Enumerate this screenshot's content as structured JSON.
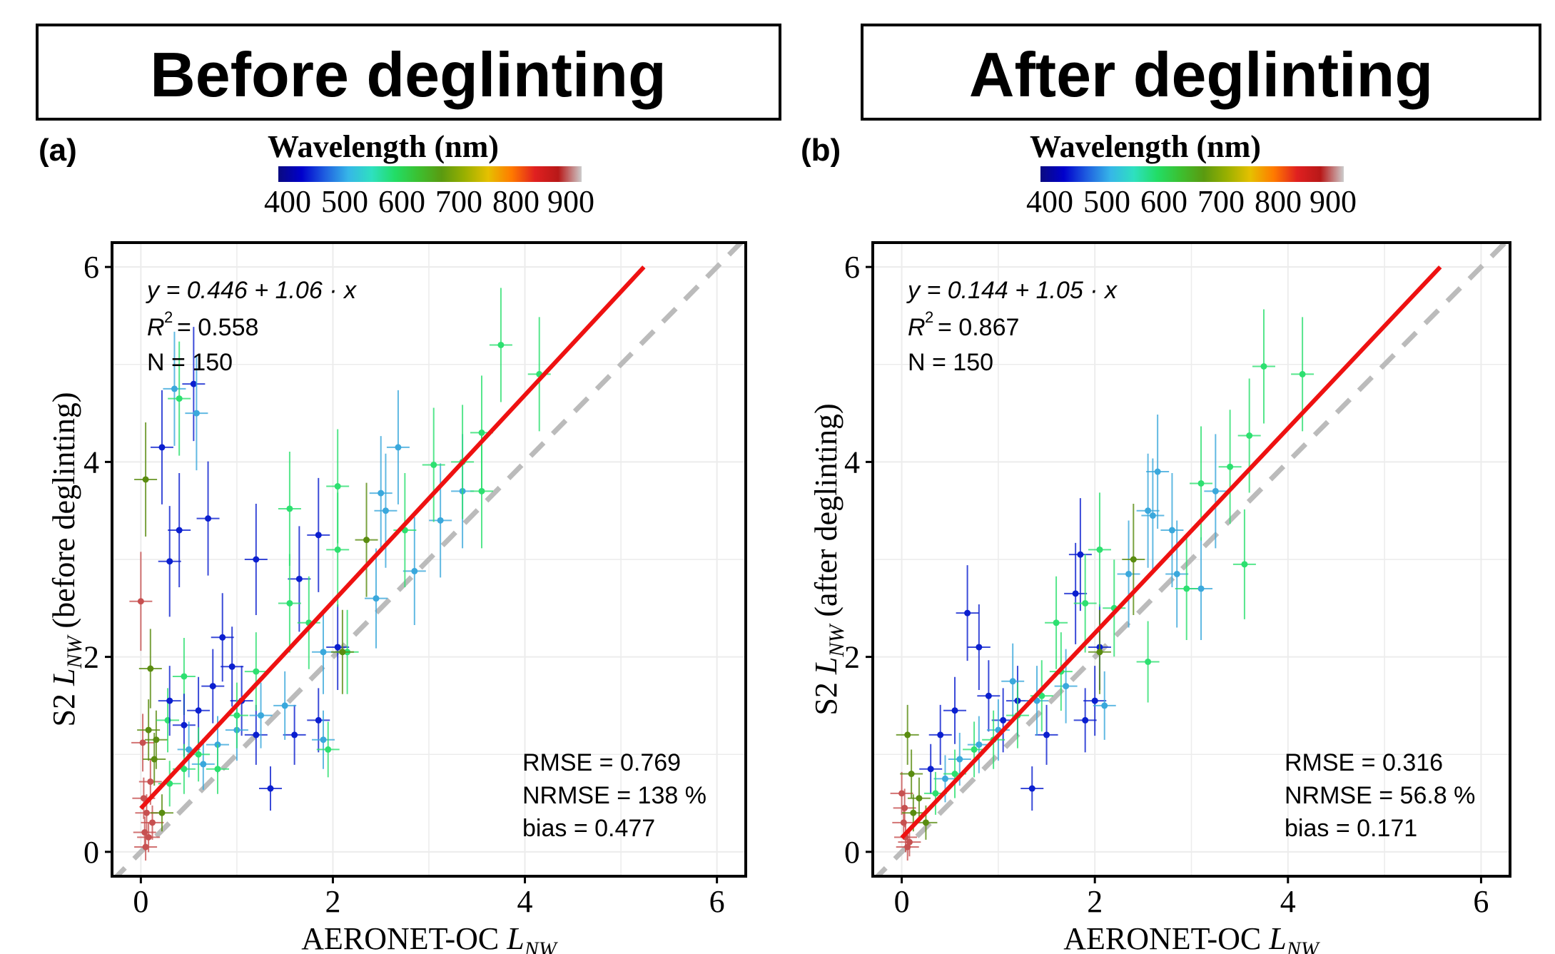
{
  "colors": {
    "fit_line": "#ee1111",
    "identity_line": "#bbbbbb",
    "frame": "#000000",
    "grid": "#ececec",
    "colorbar_stops": [
      "#0a0a80",
      "#0000cc",
      "#1f5fe0",
      "#36b6e8",
      "#2ee0c0",
      "#22dd66",
      "#3cc030",
      "#5a9a10",
      "#9ab000",
      "#e6c000",
      "#ff7a00",
      "#e02020",
      "#b81818",
      "#cccccc"
    ]
  },
  "panels": [
    {
      "title": "Before deglinting",
      "label": "(a)",
      "colorbar_title": "Wavelength (nm)",
      "colorbar_ticks": [
        "400",
        "500",
        "600",
        "700",
        "800",
        "900"
      ],
      "ylabel_prefix": "S2",
      "ylabel_L": "L",
      "ylabel_sub": "NW",
      "ylabel_suffix": "(before deglinting)",
      "xlabel_prefix": "AERONET-OC",
      "xlabel_L": "L",
      "xlabel_sub": "NW",
      "equation": "y = 0.446 + 1.06 · x",
      "r2_value": "= 0.558",
      "n_text": "N = 150",
      "rmse_text": "RMSE = 0.769",
      "nrmse_text": "NRMSE = 138 %",
      "bias_text": "bias = 0.477"
    },
    {
      "title": "After deglinting",
      "label": "(b)",
      "colorbar_title": "Wavelength (nm)",
      "colorbar_ticks": [
        "400",
        "500",
        "600",
        "700",
        "800",
        "900"
      ],
      "ylabel_prefix": "S2",
      "ylabel_L": "L",
      "ylabel_sub": "NW",
      "ylabel_suffix": "(after deglinting)",
      "xlabel_prefix": "AERONET-OC",
      "xlabel_L": "L",
      "xlabel_sub": "NW",
      "equation": "y = 0.144 + 1.05 · x",
      "r2_value": "= 0.867",
      "n_text": "N = 150",
      "rmse_text": "RMSE = 0.316",
      "nrmse_text": "NRMSE = 56.8 %",
      "bias_text": "bias = 0.171"
    }
  ],
  "chart_data": [
    {
      "type": "scatter",
      "title": "Before deglinting",
      "xlabel": "AERONET-OC L_NW",
      "ylabel": "S2 L_NW (before deglinting)",
      "xlim": [
        -0.3,
        6.3
      ],
      "ylim": [
        -0.25,
        6.25
      ],
      "x_ticks": [
        0,
        2,
        4,
        6
      ],
      "y_ticks": [
        0,
        2,
        4,
        6
      ],
      "grid": true,
      "fit": {
        "intercept": 0.446,
        "slope": 1.06
      },
      "identity_line": true,
      "color_encoding": "Wavelength (nm)",
      "points": [
        {
          "x": 0.0,
          "y": 2.57,
          "wl": 865
        },
        {
          "x": 0.02,
          "y": 1.12,
          "wl": 865
        },
        {
          "x": 0.03,
          "y": 0.55,
          "wl": 865
        },
        {
          "x": 0.04,
          "y": 0.2,
          "wl": 865
        },
        {
          "x": 0.05,
          "y": 0.05,
          "wl": 865
        },
        {
          "x": 0.06,
          "y": 0.4,
          "wl": 865
        },
        {
          "x": 0.08,
          "y": 0.15,
          "wl": 865
        },
        {
          "x": 0.1,
          "y": 0.72,
          "wl": 865
        },
        {
          "x": 0.12,
          "y": 0.3,
          "wl": 865
        },
        {
          "x": 0.05,
          "y": 3.82,
          "wl": 665
        },
        {
          "x": 0.08,
          "y": 1.25,
          "wl": 665
        },
        {
          "x": 0.1,
          "y": 1.88,
          "wl": 665
        },
        {
          "x": 0.14,
          "y": 0.95,
          "wl": 665
        },
        {
          "x": 0.16,
          "y": 1.15,
          "wl": 665
        },
        {
          "x": 0.22,
          "y": 0.4,
          "wl": 665
        },
        {
          "x": 0.28,
          "y": 1.35,
          "wl": 560
        },
        {
          "x": 0.35,
          "y": 4.75,
          "wl": 490
        },
        {
          "x": 0.4,
          "y": 4.65,
          "wl": 560
        },
        {
          "x": 0.45,
          "y": 1.8,
          "wl": 560
        },
        {
          "x": 0.22,
          "y": 4.15,
          "wl": 443
        },
        {
          "x": 0.55,
          "y": 4.8,
          "wl": 443
        },
        {
          "x": 0.58,
          "y": 4.5,
          "wl": 490
        },
        {
          "x": 0.3,
          "y": 2.98,
          "wl": 443
        },
        {
          "x": 0.4,
          "y": 3.3,
          "wl": 443
        },
        {
          "x": 0.7,
          "y": 3.42,
          "wl": 443
        },
        {
          "x": 0.3,
          "y": 1.55,
          "wl": 443
        },
        {
          "x": 0.45,
          "y": 1.3,
          "wl": 443
        },
        {
          "x": 0.6,
          "y": 1.45,
          "wl": 443
        },
        {
          "x": 0.75,
          "y": 1.7,
          "wl": 443
        },
        {
          "x": 0.85,
          "y": 2.2,
          "wl": 443
        },
        {
          "x": 0.95,
          "y": 1.9,
          "wl": 443
        },
        {
          "x": 1.05,
          "y": 1.55,
          "wl": 443
        },
        {
          "x": 1.2,
          "y": 1.2,
          "wl": 443
        },
        {
          "x": 1.35,
          "y": 0.65,
          "wl": 443
        },
        {
          "x": 1.6,
          "y": 1.2,
          "wl": 443
        },
        {
          "x": 1.65,
          "y": 2.8,
          "wl": 443
        },
        {
          "x": 1.85,
          "y": 3.25,
          "wl": 443
        },
        {
          "x": 1.85,
          "y": 1.35,
          "wl": 443
        },
        {
          "x": 1.2,
          "y": 3.0,
          "wl": 443
        },
        {
          "x": 2.05,
          "y": 2.1,
          "wl": 443
        },
        {
          "x": 0.5,
          "y": 1.05,
          "wl": 490
        },
        {
          "x": 0.65,
          "y": 0.9,
          "wl": 490
        },
        {
          "x": 0.8,
          "y": 1.1,
          "wl": 490
        },
        {
          "x": 1.0,
          "y": 1.25,
          "wl": 490
        },
        {
          "x": 1.25,
          "y": 1.4,
          "wl": 490
        },
        {
          "x": 1.5,
          "y": 1.5,
          "wl": 490
        },
        {
          "x": 1.9,
          "y": 1.15,
          "wl": 490
        },
        {
          "x": 1.9,
          "y": 2.05,
          "wl": 490
        },
        {
          "x": 2.45,
          "y": 2.6,
          "wl": 490
        },
        {
          "x": 2.5,
          "y": 3.68,
          "wl": 490
        },
        {
          "x": 2.55,
          "y": 3.5,
          "wl": 490
        },
        {
          "x": 2.68,
          "y": 4.15,
          "wl": 490
        },
        {
          "x": 2.85,
          "y": 2.88,
          "wl": 490
        },
        {
          "x": 3.12,
          "y": 3.4,
          "wl": 490
        },
        {
          "x": 3.35,
          "y": 3.7,
          "wl": 490
        },
        {
          "x": 0.3,
          "y": 0.7,
          "wl": 560
        },
        {
          "x": 0.45,
          "y": 0.85,
          "wl": 560
        },
        {
          "x": 0.6,
          "y": 1.0,
          "wl": 560
        },
        {
          "x": 0.8,
          "y": 0.85,
          "wl": 560
        },
        {
          "x": 1.0,
          "y": 1.4,
          "wl": 560
        },
        {
          "x": 1.2,
          "y": 1.85,
          "wl": 560
        },
        {
          "x": 1.55,
          "y": 2.55,
          "wl": 560
        },
        {
          "x": 1.55,
          "y": 3.52,
          "wl": 560
        },
        {
          "x": 1.75,
          "y": 2.35,
          "wl": 560
        },
        {
          "x": 1.95,
          "y": 1.05,
          "wl": 560
        },
        {
          "x": 2.05,
          "y": 3.1,
          "wl": 560
        },
        {
          "x": 2.05,
          "y": 3.75,
          "wl": 560
        },
        {
          "x": 2.15,
          "y": 2.05,
          "wl": 560
        },
        {
          "x": 2.75,
          "y": 3.3,
          "wl": 560
        },
        {
          "x": 3.05,
          "y": 3.97,
          "wl": 560
        },
        {
          "x": 3.35,
          "y": 4.0,
          "wl": 560
        },
        {
          "x": 3.55,
          "y": 3.7,
          "wl": 560
        },
        {
          "x": 3.55,
          "y": 4.3,
          "wl": 560
        },
        {
          "x": 3.75,
          "y": 5.2,
          "wl": 560
        },
        {
          "x": 4.15,
          "y": 4.9,
          "wl": 560
        },
        {
          "x": 2.35,
          "y": 3.2,
          "wl": 665
        },
        {
          "x": 2.1,
          "y": 2.05,
          "wl": 665
        }
      ]
    },
    {
      "type": "scatter",
      "title": "After deglinting",
      "xlabel": "AERONET-OC L_NW",
      "ylabel": "S2 L_NW (after deglinting)",
      "xlim": [
        -0.3,
        6.3
      ],
      "ylim": [
        -0.25,
        6.25
      ],
      "x_ticks": [
        0,
        2,
        4,
        6
      ],
      "y_ticks": [
        0,
        2,
        4,
        6
      ],
      "grid": true,
      "fit": {
        "intercept": 0.144,
        "slope": 1.05
      },
      "identity_line": true,
      "color_encoding": "Wavelength (nm)",
      "points": [
        {
          "x": 0.0,
          "y": 0.6,
          "wl": 865
        },
        {
          "x": 0.02,
          "y": 0.3,
          "wl": 865
        },
        {
          "x": 0.04,
          "y": 0.15,
          "wl": 865
        },
        {
          "x": 0.06,
          "y": 0.05,
          "wl": 865
        },
        {
          "x": 0.08,
          "y": 0.1,
          "wl": 865
        },
        {
          "x": 0.03,
          "y": 0.45,
          "wl": 865
        },
        {
          "x": 0.06,
          "y": 1.2,
          "wl": 665
        },
        {
          "x": 0.1,
          "y": 0.8,
          "wl": 665
        },
        {
          "x": 0.12,
          "y": 0.4,
          "wl": 665
        },
        {
          "x": 0.18,
          "y": 0.55,
          "wl": 665
        },
        {
          "x": 0.25,
          "y": 0.3,
          "wl": 665
        },
        {
          "x": 0.3,
          "y": 0.85,
          "wl": 443
        },
        {
          "x": 0.4,
          "y": 1.2,
          "wl": 443
        },
        {
          "x": 0.55,
          "y": 1.45,
          "wl": 443
        },
        {
          "x": 0.68,
          "y": 2.45,
          "wl": 443
        },
        {
          "x": 0.8,
          "y": 2.1,
          "wl": 443
        },
        {
          "x": 0.9,
          "y": 1.6,
          "wl": 443
        },
        {
          "x": 1.05,
          "y": 1.35,
          "wl": 443
        },
        {
          "x": 1.2,
          "y": 1.55,
          "wl": 443
        },
        {
          "x": 1.35,
          "y": 0.65,
          "wl": 443
        },
        {
          "x": 1.5,
          "y": 1.2,
          "wl": 443
        },
        {
          "x": 1.8,
          "y": 2.65,
          "wl": 443
        },
        {
          "x": 1.85,
          "y": 3.05,
          "wl": 443
        },
        {
          "x": 1.9,
          "y": 1.35,
          "wl": 443
        },
        {
          "x": 2.05,
          "y": 2.1,
          "wl": 443
        },
        {
          "x": 2.0,
          "y": 1.55,
          "wl": 443
        },
        {
          "x": 0.45,
          "y": 0.75,
          "wl": 490
        },
        {
          "x": 0.6,
          "y": 0.95,
          "wl": 490
        },
        {
          "x": 0.8,
          "y": 1.1,
          "wl": 490
        },
        {
          "x": 1.0,
          "y": 1.25,
          "wl": 490
        },
        {
          "x": 1.15,
          "y": 1.75,
          "wl": 490
        },
        {
          "x": 1.4,
          "y": 1.55,
          "wl": 490
        },
        {
          "x": 1.7,
          "y": 1.7,
          "wl": 490
        },
        {
          "x": 2.1,
          "y": 1.5,
          "wl": 490
        },
        {
          "x": 2.35,
          "y": 2.85,
          "wl": 490
        },
        {
          "x": 2.55,
          "y": 3.5,
          "wl": 490
        },
        {
          "x": 2.6,
          "y": 3.45,
          "wl": 490
        },
        {
          "x": 2.65,
          "y": 3.9,
          "wl": 490
        },
        {
          "x": 2.8,
          "y": 3.3,
          "wl": 490
        },
        {
          "x": 2.85,
          "y": 2.85,
          "wl": 490
        },
        {
          "x": 3.1,
          "y": 2.7,
          "wl": 490
        },
        {
          "x": 3.25,
          "y": 3.7,
          "wl": 490
        },
        {
          "x": 0.35,
          "y": 0.6,
          "wl": 560
        },
        {
          "x": 0.55,
          "y": 0.8,
          "wl": 560
        },
        {
          "x": 0.75,
          "y": 1.05,
          "wl": 560
        },
        {
          "x": 0.95,
          "y": 1.15,
          "wl": 560
        },
        {
          "x": 1.2,
          "y": 1.4,
          "wl": 560
        },
        {
          "x": 1.45,
          "y": 1.6,
          "wl": 560
        },
        {
          "x": 1.6,
          "y": 2.35,
          "wl": 560
        },
        {
          "x": 1.65,
          "y": 1.85,
          "wl": 560
        },
        {
          "x": 1.9,
          "y": 2.55,
          "wl": 560
        },
        {
          "x": 2.05,
          "y": 3.1,
          "wl": 560
        },
        {
          "x": 2.2,
          "y": 2.5,
          "wl": 560
        },
        {
          "x": 2.55,
          "y": 1.95,
          "wl": 560
        },
        {
          "x": 2.95,
          "y": 2.7,
          "wl": 560
        },
        {
          "x": 3.1,
          "y": 3.78,
          "wl": 560
        },
        {
          "x": 3.4,
          "y": 3.95,
          "wl": 560
        },
        {
          "x": 3.55,
          "y": 2.95,
          "wl": 560
        },
        {
          "x": 3.6,
          "y": 4.27,
          "wl": 560
        },
        {
          "x": 3.75,
          "y": 4.98,
          "wl": 560
        },
        {
          "x": 4.15,
          "y": 4.9,
          "wl": 560
        },
        {
          "x": 2.4,
          "y": 3.0,
          "wl": 665
        },
        {
          "x": 2.05,
          "y": 2.05,
          "wl": 665
        }
      ]
    }
  ]
}
